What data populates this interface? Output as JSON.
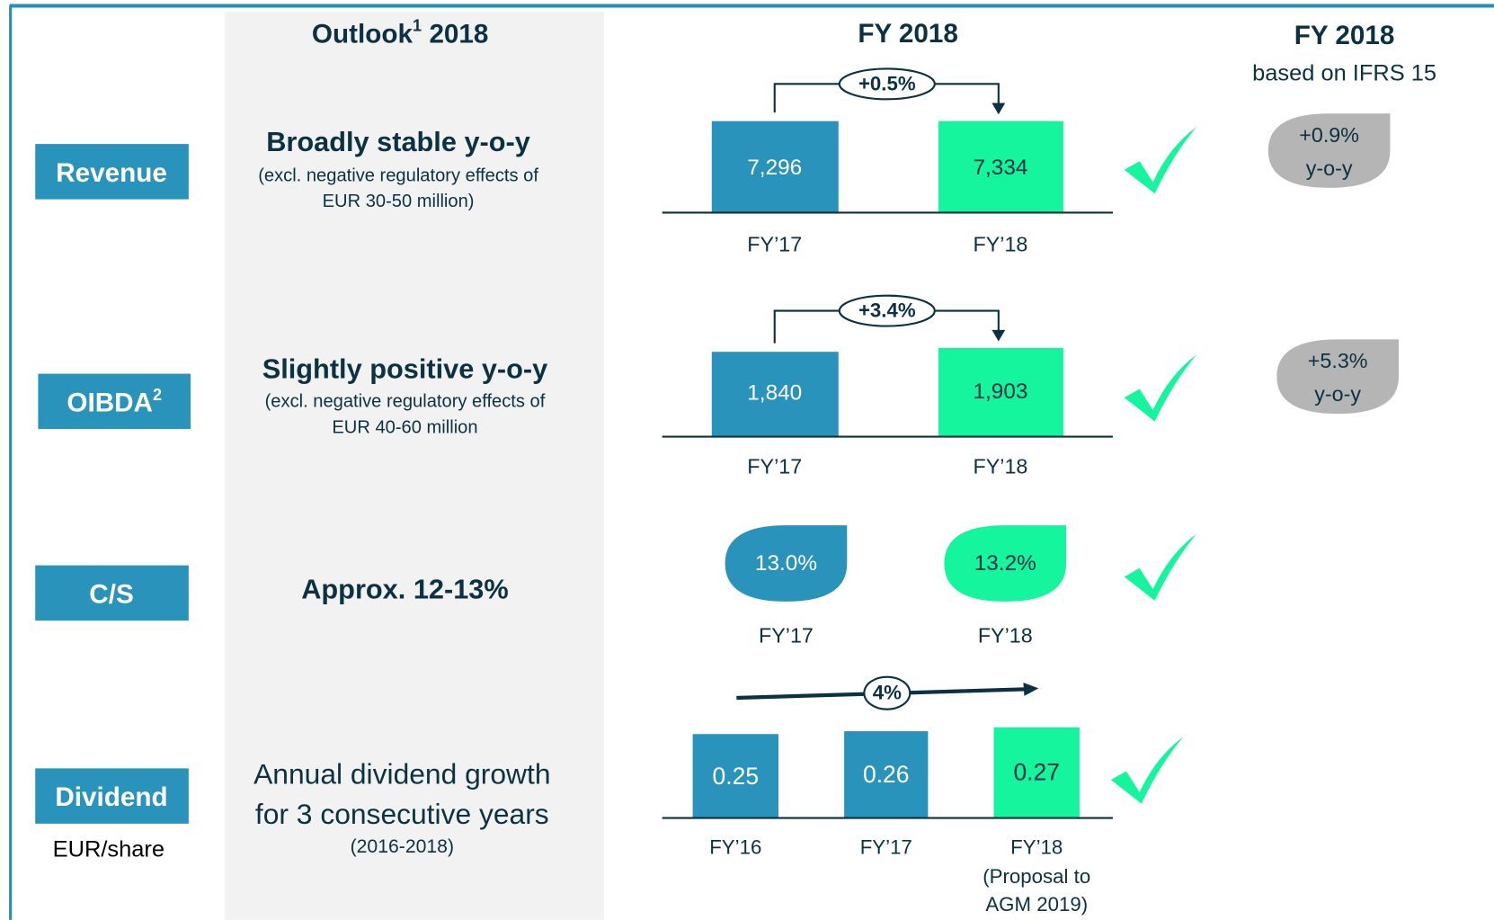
{
  "header": {
    "outlook": "Outlook",
    "outlook_sup": "1",
    "outlook_year": "2018",
    "fy": "FY 2018",
    "ifrs_title": "FY 2018",
    "ifrs_sub": "based on IFRS 15"
  },
  "revenue": {
    "label": "Revenue",
    "outlook": "Broadly stable y-o-y",
    "note": [
      "(excl. negative regulatory effects of",
      "EUR 30-50 million)"
    ],
    "change": "+0.5%",
    "values": [
      "7,296",
      "7,334"
    ],
    "periods": [
      "FY’17",
      "FY’18"
    ],
    "ifrs": [
      "+0.9%",
      "y-o-y"
    ]
  },
  "oibda": {
    "label": "OIBDA",
    "label_sup": "2",
    "outlook": "Slightly positive y-o-y",
    "note": [
      "(excl. negative regulatory effects of",
      "EUR 40-60 million"
    ],
    "change": "+3.4%",
    "values": [
      "1,840",
      "1,903"
    ],
    "periods": [
      "FY’17",
      "FY’18"
    ],
    "ifrs": [
      "+5.3%",
      "y-o-y"
    ]
  },
  "cs": {
    "label": "C/S",
    "outlook": "Approx. 12-13%",
    "values": [
      "13.0%",
      "13.2%"
    ],
    "periods": [
      "FY’17",
      "FY’18"
    ]
  },
  "dividend": {
    "label": "Dividend",
    "unit": "EUR/share",
    "outlook": [
      "Annual dividend growth",
      "for 3 consecutive years"
    ],
    "note": "(2016-2018)",
    "change": "4%",
    "values": [
      "0.25",
      "0.26",
      "0.27"
    ],
    "periods": [
      "FY’16",
      "FY’17",
      "FY’18"
    ],
    "period_note": [
      "(Proposal to",
      "AGM 2019)"
    ]
  }
}
